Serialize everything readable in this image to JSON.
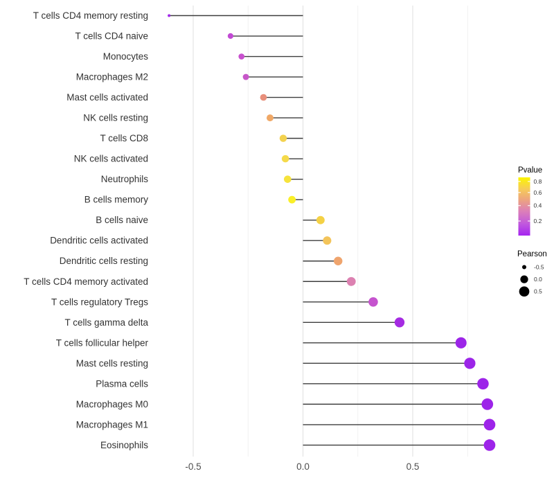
{
  "chart_data": {
    "type": "lollipop",
    "title": "",
    "xlabel": "",
    "ylabel": "",
    "grid": "vertical-only",
    "background": "#ffffff",
    "x_axis": {
      "range": [
        -0.68,
        0.93
      ],
      "ticks": [
        -0.5,
        0.0,
        0.5
      ],
      "tick_labels": [
        "-0.5",
        "0.0",
        "0.5"
      ],
      "minor_gridlines": [
        -0.25,
        0.25,
        0.75
      ]
    },
    "points": [
      {
        "label": "T cells CD4 memory resting",
        "pearson": -0.61,
        "color": "#A026E8"
      },
      {
        "label": "T cells CD4 naive",
        "pearson": -0.33,
        "color": "#C24AD4"
      },
      {
        "label": "Monocytes",
        "pearson": -0.28,
        "color": "#C851CE"
      },
      {
        "label": "Macrophages M2",
        "pearson": -0.26,
        "color": "#C757C9"
      },
      {
        "label": "Mast cells activated",
        "pearson": -0.18,
        "color": "#E88F7B"
      },
      {
        "label": "NK cells resting",
        "pearson": -0.15,
        "color": "#F0A866"
      },
      {
        "label": "T cells CD8",
        "pearson": -0.09,
        "color": "#F3D24F"
      },
      {
        "label": "NK cells activated",
        "pearson": -0.08,
        "color": "#F5DA4A"
      },
      {
        "label": "Neutrophils",
        "pearson": -0.07,
        "color": "#F6E33C"
      },
      {
        "label": "B cells memory",
        "pearson": -0.05,
        "color": "#FAEF28"
      },
      {
        "label": "B cells naive",
        "pearson": 0.08,
        "color": "#F4D145"
      },
      {
        "label": "Dendritic cells activated",
        "pearson": 0.11,
        "color": "#F3C45A"
      },
      {
        "label": "Dendritic cells resting",
        "pearson": 0.16,
        "color": "#EFA46D"
      },
      {
        "label": "T cells CD4 memory activated",
        "pearson": 0.22,
        "color": "#DC81B1"
      },
      {
        "label": "T cells regulatory  Tregs",
        "pearson": 0.32,
        "color": "#C553CE"
      },
      {
        "label": "T cells gamma delta",
        "pearson": 0.44,
        "color": "#A52BE2"
      },
      {
        "label": "T cells follicular helper",
        "pearson": 0.72,
        "color": "#9C25E8"
      },
      {
        "label": "Mast cells resting",
        "pearson": 0.76,
        "color": "#9C25E8"
      },
      {
        "label": "Plasma cells",
        "pearson": 0.82,
        "color": "#9D24E9"
      },
      {
        "label": "Macrophages M0",
        "pearson": 0.84,
        "color": "#9D24E9"
      },
      {
        "label": "Macrophages M1",
        "pearson": 0.85,
        "color": "#9D24E9"
      },
      {
        "label": "Eosinophils",
        "pearson": 0.85,
        "color": "#9D24E9"
      }
    ],
    "legends": {
      "pvalue": {
        "title": "Pvalue",
        "ticks": [
          {
            "label": "0.8",
            "pos": 0.93
          },
          {
            "label": "0.6",
            "pos": 0.74
          },
          {
            "label": "0.4",
            "pos": 0.515
          },
          {
            "label": "0.2",
            "pos": 0.25
          }
        ],
        "gradient": [
          [
            0.0,
            "#A524F0"
          ],
          [
            0.2,
            "#C058DE"
          ],
          [
            0.42,
            "#DC7FB8"
          ],
          [
            0.62,
            "#EDA57E"
          ],
          [
            0.8,
            "#F6CB58"
          ],
          [
            1.0,
            "#FCF500"
          ]
        ]
      },
      "pearson": {
        "title": "Pearson",
        "entries": [
          {
            "label": "-0.5",
            "value": -0.5
          },
          {
            "label": "0.0",
            "value": 0.0
          },
          {
            "label": "0.5",
            "value": 0.5
          }
        ]
      }
    },
    "style_colors": {
      "stem": "#3D3D3D",
      "major_grid": "#E4E4E4",
      "minor_grid": "#F1F1F1",
      "axis_text": "#4D4D4D",
      "label_text": "#333333"
    }
  }
}
